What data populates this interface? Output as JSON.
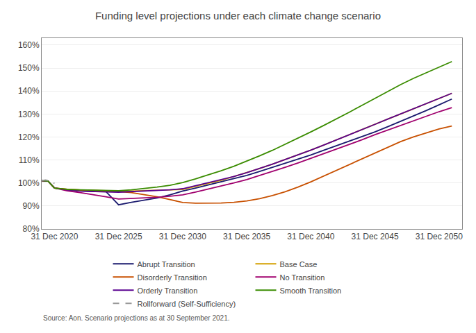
{
  "chart_data": {
    "type": "line",
    "title": "Funding level projections under each climate change scenario",
    "annotations": [
      "Source: Aon. Scenario projections as at 30 September 2021."
    ],
    "xlim": [
      2019.0,
      2051.8
    ],
    "xticks": [
      {
        "value": 2020,
        "label": "31 Dec 2020"
      },
      {
        "value": 2025,
        "label": "31 Dec 2025"
      },
      {
        "value": 2030,
        "label": "31 Dec 2030"
      },
      {
        "value": 2035,
        "label": "31 Dec 2035"
      },
      {
        "value": 2040,
        "label": "31 Dec 2040"
      },
      {
        "value": 2045,
        "label": "31 Dec 2045"
      },
      {
        "value": 2050,
        "label": "31 Dec 2050"
      }
    ],
    "ylim": [
      0.8,
      1.63
    ],
    "yticks": [
      {
        "value": 0.8,
        "label": "80%"
      },
      {
        "value": 0.9,
        "label": "90%"
      },
      {
        "value": 1.0,
        "label": "100%"
      },
      {
        "value": 1.1,
        "label": "110%"
      },
      {
        "value": 1.2,
        "label": "120%"
      },
      {
        "value": 1.3,
        "label": "130%"
      },
      {
        "value": 1.4,
        "label": "140%"
      },
      {
        "value": 1.5,
        "label": "150%"
      },
      {
        "value": 1.6,
        "label": "160%"
      }
    ],
    "grid": "y",
    "legend": "bottom",
    "series": [
      {
        "name": "Abrupt Transition",
        "color": "#1a1a6e",
        "line_style": "solid",
        "x": [
          2019.0,
          2019.5,
          2020.0,
          2020.5,
          2021.0,
          2022.0,
          2023.0,
          2024.0,
          2025.0,
          2026.0,
          2027.0,
          2028.0,
          2029.0,
          2030.0,
          2031.0,
          2032.0,
          2033.0,
          2034.0,
          2035.0,
          2036.0,
          2037.0,
          2038.0,
          2039.0,
          2040.0,
          2041.0,
          2042.0,
          2043.0,
          2044.0,
          2045.0,
          2046.0,
          2047.0,
          2048.0,
          2049.0,
          2050.0,
          2051.0
        ],
        "values": [
          1.01,
          1.008,
          0.978,
          0.973,
          0.97,
          0.966,
          0.963,
          0.963,
          0.905,
          0.916,
          0.925,
          0.935,
          0.948,
          0.965,
          0.978,
          0.992,
          1.005,
          1.018,
          1.033,
          1.05,
          1.068,
          1.085,
          1.103,
          1.122,
          1.142,
          1.162,
          1.182,
          1.202,
          1.222,
          1.245,
          1.268,
          1.29,
          1.315,
          1.34,
          1.365
        ]
      },
      {
        "name": "Base Case",
        "color": "#d4a000",
        "line_style": "solid",
        "x": [
          2019.0,
          2019.5,
          2020.0,
          2020.5,
          2021.0,
          2022.0,
          2023.0,
          2024.0,
          2025.0,
          2026.0,
          2027.0,
          2028.0,
          2029.0,
          2030.0,
          2031.0,
          2032.0,
          2033.0,
          2034.0,
          2035.0,
          2036.0,
          2037.0,
          2038.0,
          2039.0,
          2040.0,
          2041.0,
          2042.0,
          2043.0,
          2044.0,
          2045.0,
          2046.0,
          2047.0,
          2048.0,
          2049.0,
          2050.0,
          2051.0
        ],
        "values": [
          1.01,
          1.008,
          0.978,
          0.974,
          0.972,
          0.969,
          0.967,
          0.966,
          0.965,
          0.965,
          0.966,
          0.968,
          0.97,
          0.972,
          0.985,
          0.998,
          1.012,
          1.028,
          1.045,
          1.063,
          1.082,
          1.102,
          1.122,
          1.143,
          1.165,
          1.188,
          1.21,
          1.232,
          1.255,
          1.278,
          1.3,
          1.322,
          1.345,
          1.368,
          1.39
        ]
      },
      {
        "name": "Disorderly Transition",
        "color": "#c85000",
        "line_style": "solid",
        "x": [
          2019.0,
          2019.5,
          2020.0,
          2020.5,
          2021.0,
          2022.0,
          2023.0,
          2024.0,
          2025.0,
          2026.0,
          2027.0,
          2028.0,
          2029.0,
          2030.0,
          2031.0,
          2032.0,
          2033.0,
          2034.0,
          2035.0,
          2036.0,
          2037.0,
          2038.0,
          2039.0,
          2040.0,
          2041.0,
          2042.0,
          2043.0,
          2044.0,
          2045.0,
          2046.0,
          2047.0,
          2048.0,
          2049.0,
          2050.0,
          2051.0
        ],
        "values": [
          1.01,
          1.008,
          0.978,
          0.974,
          0.972,
          0.969,
          0.967,
          0.965,
          0.963,
          0.958,
          0.95,
          0.94,
          0.928,
          0.915,
          0.912,
          0.912,
          0.913,
          0.916,
          0.922,
          0.932,
          0.945,
          0.962,
          0.982,
          1.005,
          1.03,
          1.055,
          1.08,
          1.105,
          1.13,
          1.155,
          1.18,
          1.2,
          1.218,
          1.235,
          1.248
        ]
      },
      {
        "name": "No Transition",
        "color": "#a0006e",
        "line_style": "solid",
        "x": [
          2019.0,
          2019.5,
          2020.0,
          2020.5,
          2021.0,
          2022.0,
          2023.0,
          2024.0,
          2025.0,
          2026.0,
          2027.0,
          2028.0,
          2029.0,
          2030.0,
          2031.0,
          2032.0,
          2033.0,
          2034.0,
          2035.0,
          2036.0,
          2037.0,
          2038.0,
          2039.0,
          2040.0,
          2041.0,
          2042.0,
          2043.0,
          2044.0,
          2045.0,
          2046.0,
          2047.0,
          2048.0,
          2049.0,
          2050.0,
          2051.0
        ],
        "values": [
          1.01,
          1.008,
          0.978,
          0.972,
          0.966,
          0.958,
          0.95,
          0.94,
          0.93,
          0.932,
          0.934,
          0.938,
          0.942,
          0.948,
          0.96,
          0.973,
          0.986,
          1.0,
          1.015,
          1.032,
          1.05,
          1.068,
          1.087,
          1.107,
          1.128,
          1.148,
          1.168,
          1.188,
          1.21,
          1.23,
          1.252,
          1.272,
          1.292,
          1.31,
          1.328
        ]
      },
      {
        "name": "Orderly Transition",
        "color": "#5a0090",
        "line_style": "solid",
        "x": [
          2019.0,
          2019.5,
          2020.0,
          2020.5,
          2021.0,
          2022.0,
          2023.0,
          2024.0,
          2025.0,
          2026.0,
          2027.0,
          2028.0,
          2029.0,
          2030.0,
          2031.0,
          2032.0,
          2033.0,
          2034.0,
          2035.0,
          2036.0,
          2037.0,
          2038.0,
          2039.0,
          2040.0,
          2041.0,
          2042.0,
          2043.0,
          2044.0,
          2045.0,
          2046.0,
          2047.0,
          2048.0,
          2049.0,
          2050.0,
          2051.0
        ],
        "values": [
          1.01,
          1.008,
          0.978,
          0.973,
          0.97,
          0.965,
          0.962,
          0.961,
          0.96,
          0.962,
          0.964,
          0.967,
          0.97,
          0.975,
          0.988,
          1.0,
          1.013,
          1.028,
          1.045,
          1.063,
          1.082,
          1.102,
          1.122,
          1.143,
          1.165,
          1.187,
          1.21,
          1.232,
          1.255,
          1.278,
          1.3,
          1.322,
          1.345,
          1.368,
          1.39
        ]
      },
      {
        "name": "Smooth Transition",
        "color": "#3a8c00",
        "line_style": "solid",
        "x": [
          2019.0,
          2019.5,
          2020.0,
          2020.5,
          2021.0,
          2022.0,
          2023.0,
          2024.0,
          2025.0,
          2026.0,
          2027.0,
          2028.0,
          2029.0,
          2030.0,
          2031.0,
          2032.0,
          2033.0,
          2034.0,
          2035.0,
          2036.0,
          2037.0,
          2038.0,
          2039.0,
          2040.0,
          2041.0,
          2042.0,
          2043.0,
          2044.0,
          2045.0,
          2046.0,
          2047.0,
          2048.0,
          2049.0,
          2050.0,
          2051.0
        ],
        "values": [
          1.01,
          1.008,
          0.978,
          0.974,
          0.972,
          0.97,
          0.968,
          0.967,
          0.966,
          0.97,
          0.975,
          0.982,
          0.99,
          1.002,
          1.018,
          1.035,
          1.053,
          1.073,
          1.095,
          1.118,
          1.142,
          1.168,
          1.195,
          1.222,
          1.25,
          1.278,
          1.308,
          1.338,
          1.368,
          1.398,
          1.428,
          1.455,
          1.48,
          1.505,
          1.528
        ]
      },
      {
        "name": "Rollforward (Self-Sufficiency)",
        "color": "#999999",
        "line_style": "dashed",
        "x": [
          2019.0,
          2019.3,
          2019.6,
          2019.9,
          2020.0
        ],
        "values": [
          1.01,
          1.013,
          1.01,
          1.002,
          0.998
        ]
      }
    ]
  }
}
